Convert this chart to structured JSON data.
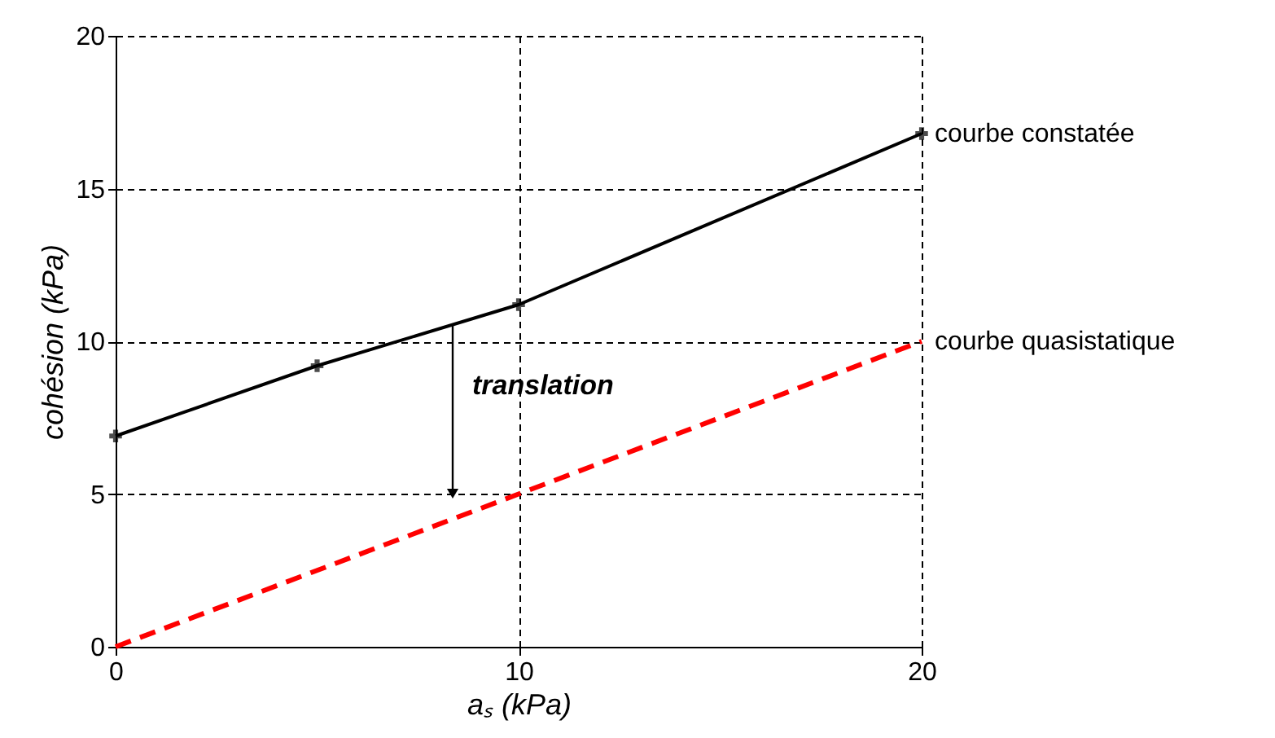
{
  "chart_data": {
    "type": "line",
    "xlabel": "aₛ (kPa)",
    "ylabel": "cohésion (kPa)",
    "series": [
      {
        "name": "courbe constatée",
        "color": "#000000",
        "x": [
          0,
          5,
          10,
          20
        ],
        "values": [
          6.9,
          9.2,
          11.2,
          16.8
        ],
        "marker": "cross",
        "line_style": "solid"
      },
      {
        "name": "courbe quasistatique",
        "color": "#ff0000",
        "x": [
          0,
          20
        ],
        "values": [
          0,
          10
        ],
        "marker": "none",
        "line_style": "dashed"
      }
    ],
    "annotations": [
      "translation"
    ],
    "xlim": [
      0,
      20
    ],
    "ylim": [
      0,
      20
    ],
    "xticks": [
      0,
      10,
      20
    ],
    "yticks": [
      0,
      5,
      10,
      15,
      20
    ],
    "grid": true
  }
}
